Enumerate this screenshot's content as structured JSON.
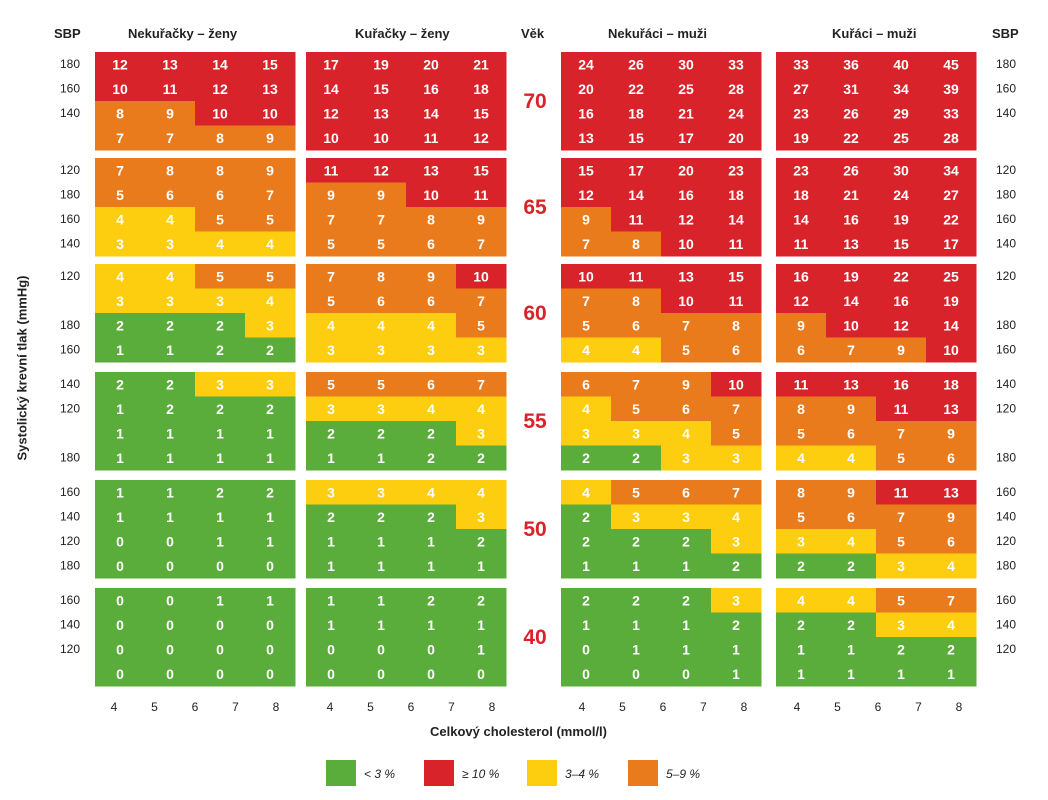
{
  "header": {
    "sbp_left": "SBP",
    "sbp_right": "SBP",
    "age_label": "Věk",
    "panels": [
      "Nekuřačky – ženy",
      "Kuřačky – ženy",
      "Nekuřáci – muži",
      "Kuřáci – muži"
    ]
  },
  "axes": {
    "ylabel": "Systolický krevní tlak (mmHg)",
    "xlabel": "Celkový cholesterol (mmol/l)"
  },
  "colors": {
    "green": "#5aac3b",
    "yellow": "#fdcd0f",
    "orange": "#ea7b1d",
    "red": "#d9232a"
  },
  "legend": [
    {
      "color": "green",
      "label": "< 3 %"
    },
    {
      "color": "red",
      "label": "≥ 10 %"
    },
    {
      "color": "yellow",
      "label": "3–4 %"
    },
    {
      "color": "orange",
      "label": "5–9 %"
    }
  ],
  "chart_data": {
    "type": "heatmap",
    "x_ticks": [
      "4",
      "5",
      "6",
      "7",
      "8"
    ],
    "ages": [
      "70",
      "65",
      "60",
      "55",
      "50",
      "40"
    ],
    "sbp_left_ticks": [
      [
        "180",
        "160",
        "140",
        ""
      ],
      [
        "120",
        "180",
        "160",
        "140"
      ],
      [
        "120",
        "",
        "180",
        "160"
      ],
      [
        "140",
        "120",
        "",
        "180"
      ],
      [
        "160",
        "140",
        "120",
        "180"
      ],
      [
        "160",
        "140",
        "120",
        ""
      ]
    ],
    "sbp_right_ticks": [
      [
        "180",
        "160",
        "140",
        ""
      ],
      [
        "120",
        "180",
        "160",
        "140"
      ],
      [
        "120",
        "",
        "180",
        "160"
      ],
      [
        "140",
        "120",
        "",
        "180"
      ],
      [
        "160",
        "140",
        "120",
        "180"
      ],
      [
        "160",
        "140",
        "120",
        ""
      ]
    ],
    "panels": [
      {
        "name": "Nekuřačky – ženy",
        "blocks": [
          [
            [
              12,
              13,
              14,
              15
            ],
            [
              10,
              11,
              12,
              13
            ],
            [
              8,
              9,
              10,
              10
            ],
            [
              7,
              7,
              8,
              9
            ]
          ],
          [
            [
              7,
              8,
              8,
              9
            ],
            [
              5,
              6,
              6,
              7
            ],
            [
              4,
              4,
              5,
              5
            ],
            [
              3,
              3,
              4,
              4
            ]
          ],
          [
            [
              4,
              4,
              5,
              5
            ],
            [
              3,
              3,
              3,
              4
            ],
            [
              2,
              2,
              2,
              3
            ],
            [
              1,
              1,
              2,
              2
            ]
          ],
          [
            [
              2,
              2,
              3,
              3
            ],
            [
              1,
              2,
              2,
              2
            ],
            [
              1,
              1,
              1,
              1
            ],
            [
              1,
              1,
              1,
              1
            ]
          ],
          [
            [
              1,
              1,
              2,
              2
            ],
            [
              1,
              1,
              1,
              1
            ],
            [
              0,
              0,
              1,
              1
            ],
            [
              0,
              0,
              0,
              0
            ]
          ],
          [
            [
              0,
              0,
              1,
              1
            ],
            [
              0,
              0,
              0,
              0
            ],
            [
              0,
              0,
              0,
              0
            ],
            [
              0,
              0,
              0,
              0
            ]
          ]
        ]
      },
      {
        "name": "Kuřačky – ženy",
        "blocks": [
          [
            [
              17,
              19,
              20,
              21
            ],
            [
              14,
              15,
              16,
              18
            ],
            [
              12,
              13,
              14,
              15
            ],
            [
              10,
              10,
              11,
              12
            ]
          ],
          [
            [
              11,
              12,
              13,
              15
            ],
            [
              9,
              9,
              10,
              11
            ],
            [
              7,
              7,
              8,
              9
            ],
            [
              5,
              5,
              6,
              7
            ]
          ],
          [
            [
              7,
              8,
              9,
              10
            ],
            [
              5,
              6,
              6,
              7
            ],
            [
              4,
              4,
              4,
              5
            ],
            [
              3,
              3,
              3,
              3
            ]
          ],
          [
            [
              5,
              5,
              6,
              7
            ],
            [
              3,
              3,
              4,
              4
            ],
            [
              2,
              2,
              2,
              3
            ],
            [
              1,
              1,
              2,
              2
            ]
          ],
          [
            [
              3,
              3,
              4,
              4
            ],
            [
              2,
              2,
              2,
              3
            ],
            [
              1,
              1,
              1,
              2
            ],
            [
              1,
              1,
              1,
              1
            ]
          ],
          [
            [
              1,
              1,
              2,
              2
            ],
            [
              1,
              1,
              1,
              1
            ],
            [
              0,
              0,
              0,
              1
            ],
            [
              0,
              0,
              0,
              0
            ]
          ]
        ]
      },
      {
        "name": "Nekuřáci – muži",
        "blocks": [
          [
            [
              24,
              26,
              30,
              33
            ],
            [
              20,
              22,
              25,
              28
            ],
            [
              16,
              18,
              21,
              24
            ],
            [
              13,
              15,
              17,
              20
            ]
          ],
          [
            [
              15,
              17,
              20,
              23
            ],
            [
              12,
              14,
              16,
              18
            ],
            [
              9,
              11,
              12,
              14
            ],
            [
              7,
              8,
              10,
              11
            ]
          ],
          [
            [
              10,
              11,
              13,
              15
            ],
            [
              7,
              8,
              10,
              11
            ],
            [
              5,
              6,
              7,
              8
            ],
            [
              4,
              4,
              5,
              6
            ]
          ],
          [
            [
              6,
              7,
              9,
              10
            ],
            [
              4,
              5,
              6,
              7
            ],
            [
              3,
              3,
              4,
              5
            ],
            [
              2,
              2,
              3,
              3
            ]
          ],
          [
            [
              4,
              5,
              6,
              7
            ],
            [
              2,
              3,
              3,
              4
            ],
            [
              2,
              2,
              2,
              3
            ],
            [
              1,
              1,
              1,
              2
            ]
          ],
          [
            [
              2,
              2,
              2,
              3
            ],
            [
              1,
              1,
              1,
              2
            ],
            [
              0,
              1,
              1,
              1
            ],
            [
              0,
              0,
              0,
              1
            ]
          ]
        ]
      },
      {
        "name": "Kuřáci – muži",
        "blocks": [
          [
            [
              33,
              36,
              40,
              45
            ],
            [
              27,
              31,
              34,
              39
            ],
            [
              23,
              26,
              29,
              33
            ],
            [
              19,
              22,
              25,
              28
            ]
          ],
          [
            [
              23,
              26,
              30,
              34
            ],
            [
              18,
              21,
              24,
              27
            ],
            [
              14,
              16,
              19,
              22
            ],
            [
              11,
              13,
              15,
              17
            ]
          ],
          [
            [
              16,
              19,
              22,
              25
            ],
            [
              12,
              14,
              16,
              19
            ],
            [
              9,
              10,
              12,
              14
            ],
            [
              6,
              7,
              9,
              10
            ]
          ],
          [
            [
              11,
              13,
              16,
              18
            ],
            [
              8,
              9,
              11,
              13
            ],
            [
              5,
              6,
              7,
              9
            ],
            [
              4,
              4,
              5,
              6
            ]
          ],
          [
            [
              8,
              9,
              11,
              13
            ],
            [
              5,
              6,
              7,
              9
            ],
            [
              3,
              4,
              5,
              6
            ],
            [
              2,
              2,
              3,
              4
            ]
          ],
          [
            [
              4,
              4,
              5,
              7
            ],
            [
              2,
              2,
              3,
              4
            ],
            [
              1,
              1,
              2,
              2
            ],
            [
              1,
              1,
              1,
              1
            ]
          ]
        ]
      }
    ]
  }
}
